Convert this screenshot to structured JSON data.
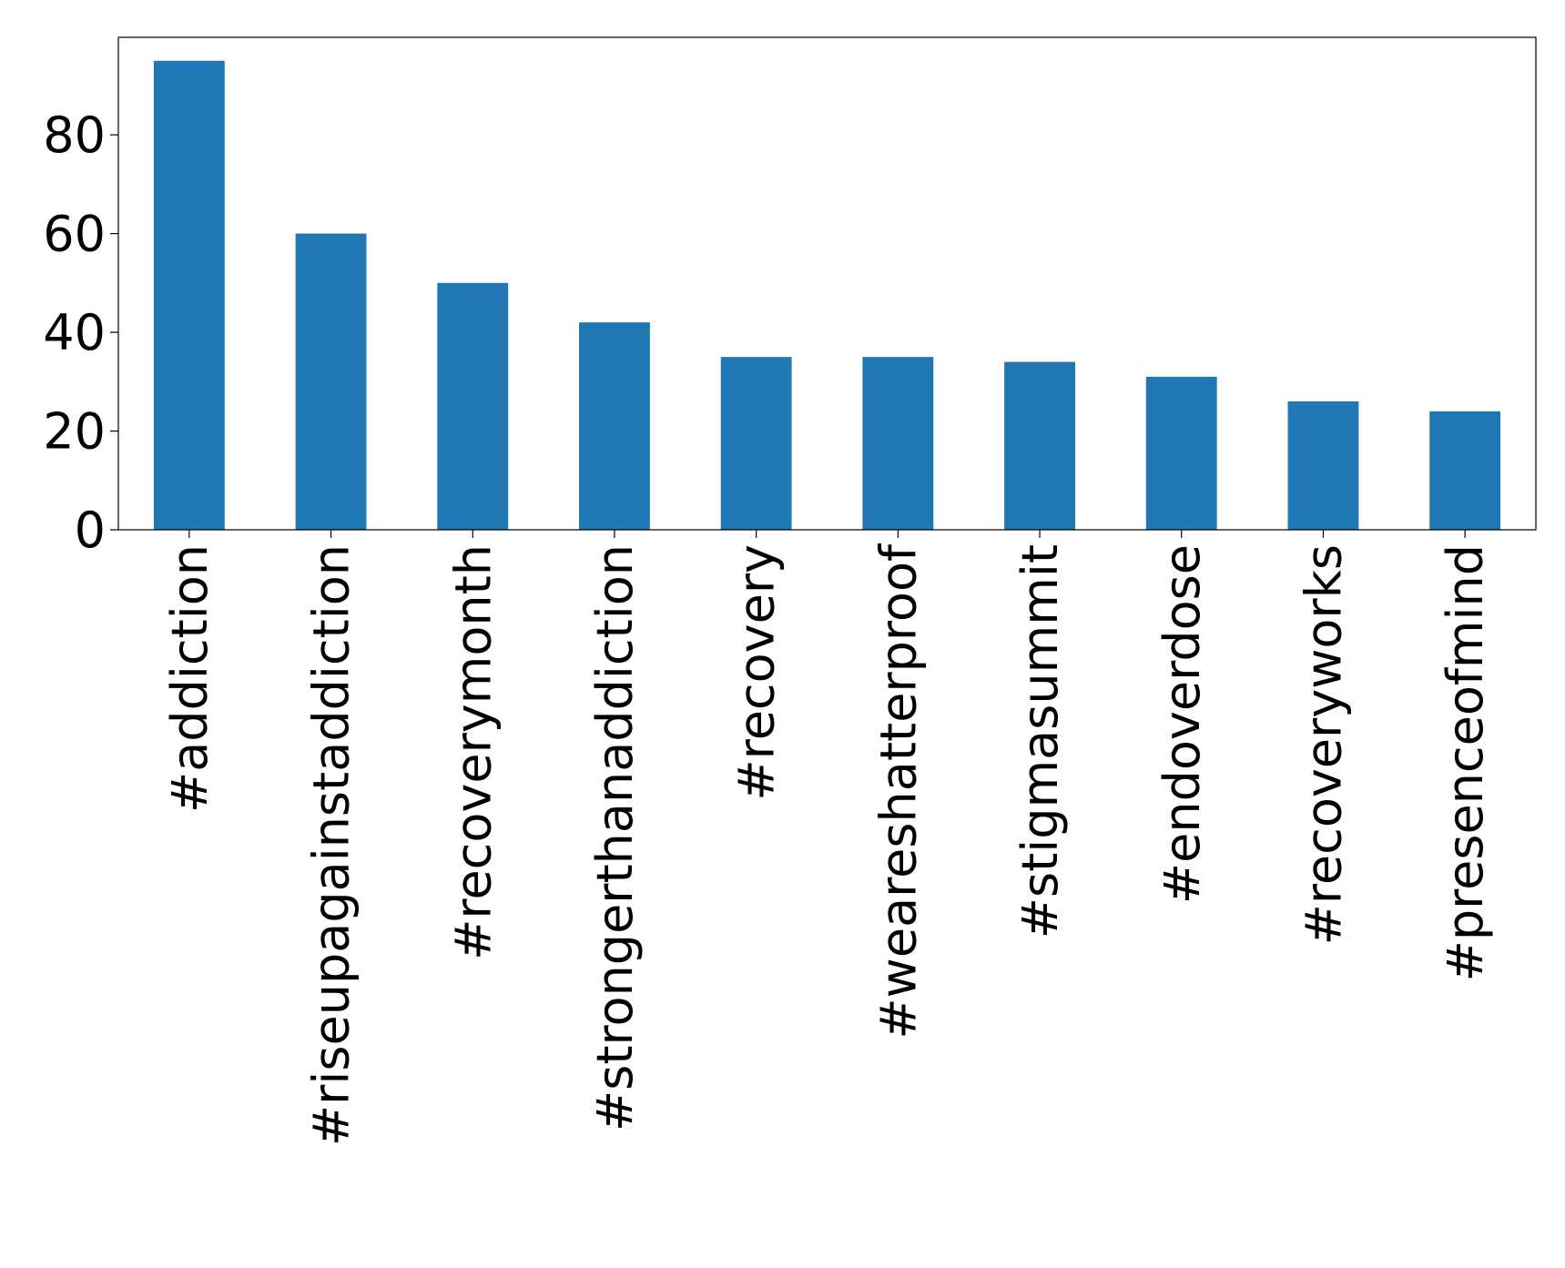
{
  "chart_data": {
    "type": "bar",
    "categories": [
      "#addiction",
      "#riseupagainstaddiction",
      "#recoverymonth",
      "#strongerthanaddiction",
      "#recovery",
      "#weareshatterproof",
      "#stigmasummit",
      "#endoverdose",
      "#recoveryworks",
      "#presenceofmind"
    ],
    "values": [
      95,
      60,
      50,
      42,
      35,
      35,
      34,
      31,
      26,
      24
    ],
    "color": "#1f77b4",
    "ylim": [
      0,
      99.75
    ],
    "yticks": [
      0,
      20,
      40,
      60,
      80
    ],
    "grid": false
  }
}
